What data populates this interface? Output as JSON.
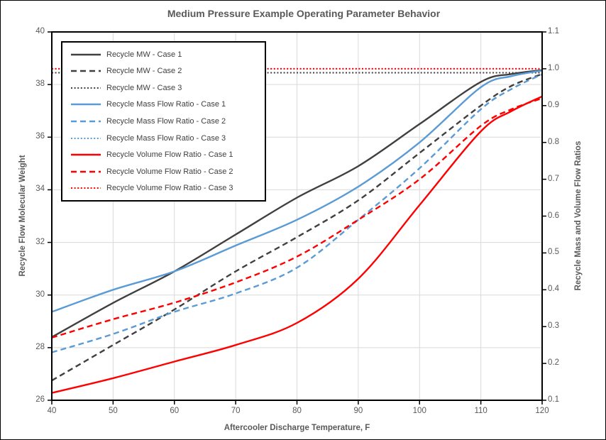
{
  "chart_data": {
    "type": "line",
    "title": "Medium Pressure Example Operating Parameter Behavior",
    "xlabel": "Aftercooler Discharge Temperature, F",
    "ylabel_left": "Recycle Flow Molecular Weight",
    "ylabel_right": "Recycle Mass and Volume Flow Ratios",
    "xlim": [
      40,
      120
    ],
    "ylim_left": [
      26,
      40
    ],
    "ylim_right": [
      0.1,
      1.1
    ],
    "grid": true,
    "legend_position": "upper-left-inside",
    "x_tick_labels": [
      "40",
      "50",
      "60",
      "70",
      "80",
      "90",
      "100",
      "110",
      "120"
    ],
    "left_tick_labels": [
      "26",
      "28",
      "30",
      "32",
      "34",
      "36",
      "38",
      "40"
    ],
    "right_tick_labels": [
      "0.1",
      "0.2",
      "0.3",
      "0.4",
      "0.5",
      "0.6",
      "0.7",
      "0.8",
      "0.9",
      "1.0",
      "1.1"
    ],
    "x": [
      40,
      50,
      60,
      70,
      80,
      90,
      100,
      110,
      115,
      120
    ],
    "series": [
      {
        "name": "Recycle MW - Case 1",
        "axis": "left",
        "color": "#404040",
        "style": "solid",
        "values": [
          28.4,
          29.7,
          30.9,
          32.3,
          33.7,
          34.9,
          36.5,
          38.1,
          38.4,
          38.55
        ]
      },
      {
        "name": "Recycle MW - Case 2",
        "axis": "left",
        "color": "#404040",
        "style": "dashed",
        "values": [
          26.75,
          28.1,
          29.45,
          30.9,
          32.2,
          33.6,
          35.4,
          37.2,
          37.95,
          38.4
        ]
      },
      {
        "name": "Recycle MW - Case 3",
        "axis": "left",
        "color": "#404040",
        "style": "dotted",
        "values": [
          38.45,
          38.45,
          38.45,
          38.45,
          38.45,
          38.45,
          38.45,
          38.45,
          38.45,
          38.45
        ]
      },
      {
        "name": "Recycle Mass Flow Ratio - Case 1",
        "axis": "right",
        "color": "#5B9BD5",
        "style": "solid",
        "values": [
          0.34,
          0.4,
          0.45,
          0.52,
          0.59,
          0.68,
          0.8,
          0.95,
          0.98,
          0.995
        ]
      },
      {
        "name": "Recycle Mass Flow Ratio - Case 2",
        "axis": "right",
        "color": "#5B9BD5",
        "style": "dashed",
        "values": [
          0.23,
          0.28,
          0.34,
          0.39,
          0.46,
          0.59,
          0.73,
          0.89,
          0.945,
          0.985
        ]
      },
      {
        "name": "Recycle Mass Flow Ratio - Case 3",
        "axis": "right",
        "color": "#5B9BD5",
        "style": "dotted",
        "values": [
          1.0,
          1.0,
          1.0,
          1.0,
          1.0,
          1.0,
          1.0,
          1.0,
          1.0,
          1.0
        ]
      },
      {
        "name": "Recycle Volume Flow Ratio - Case 1",
        "axis": "right",
        "color": "#FF0000",
        "style": "solid",
        "values": [
          0.12,
          0.16,
          0.205,
          0.25,
          0.31,
          0.43,
          0.63,
          0.83,
          0.885,
          0.925
        ]
      },
      {
        "name": "Recycle Volume Flow Ratio - Case 2",
        "axis": "right",
        "color": "#FF0000",
        "style": "dashed",
        "values": [
          0.27,
          0.32,
          0.365,
          0.42,
          0.49,
          0.59,
          0.7,
          0.845,
          0.89,
          0.92
        ]
      },
      {
        "name": "Recycle Volume Flow Ratio - Case 3",
        "axis": "right",
        "color": "#FF0000",
        "style": "dotted",
        "values": [
          1.0,
          1.0,
          1.0,
          1.0,
          1.0,
          1.0,
          1.0,
          1.0,
          1.0,
          1.0
        ]
      }
    ],
    "colors": {
      "grid": "#D9D9D9",
      "plot_border": "#000000",
      "tick": "#000000",
      "text": "#595959",
      "legend_text": "#3F3F3F",
      "background": "#FFFFFF"
    }
  }
}
